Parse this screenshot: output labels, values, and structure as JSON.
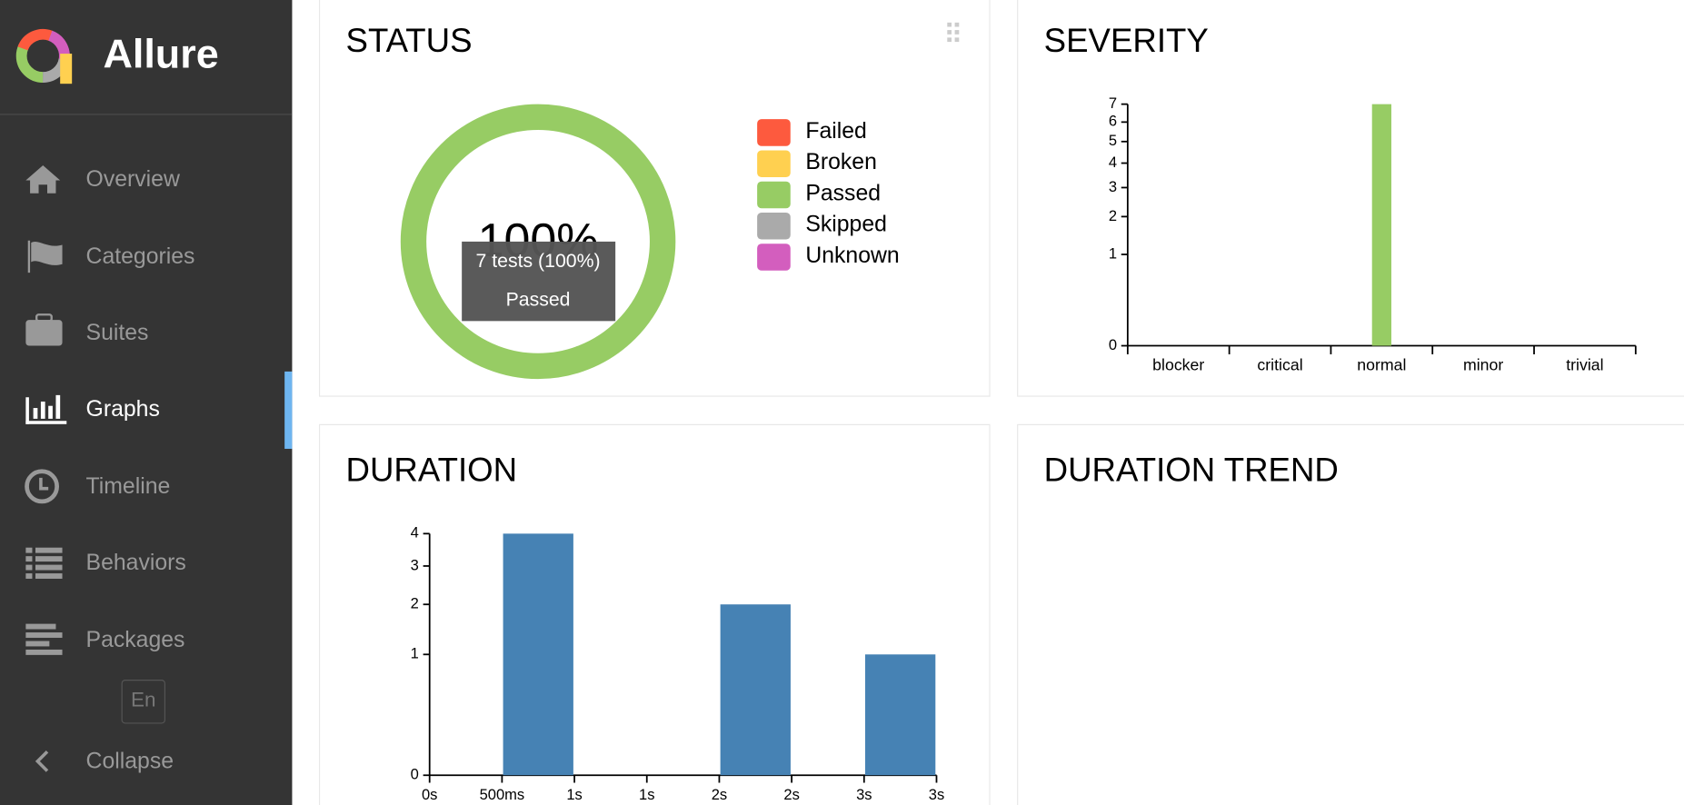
{
  "sidebar": {
    "brand": "Allure",
    "nav": [
      "Overview",
      "Categories",
      "Suites",
      "Graphs",
      "Timeline",
      "Behaviors",
      "Packages"
    ],
    "active": 3,
    "language": "En",
    "collapse": "Collapse"
  },
  "chart_data": [
    {
      "type": "pie",
      "title": "STATUS",
      "categories": [
        "Failed",
        "Broken",
        "Passed",
        "Skipped",
        "Unknown"
      ],
      "values": [
        0,
        0,
        7,
        0,
        0
      ],
      "colors": [
        "#fd5a3e",
        "#ffd050",
        "#97cc64",
        "#aaaaaa",
        "#d35ebe"
      ],
      "center_label": "100%",
      "tooltip": [
        "7 tests (100%)",
        "Passed"
      ]
    },
    {
      "type": "bar",
      "title": "SEVERITY",
      "categories": [
        "blocker",
        "critical",
        "normal",
        "minor",
        "trivial"
      ],
      "values": [
        0,
        0,
        7,
        0,
        0
      ],
      "color": "#97cc64",
      "scale": "sqrt",
      "ylim": [
        0,
        7
      ],
      "yticks": [
        0,
        1,
        2,
        3,
        4,
        5,
        6,
        7
      ]
    },
    {
      "type": "histogram",
      "title": "DURATION",
      "bins": [
        0,
        500,
        1000,
        1500,
        2000,
        2500,
        3000,
        3500
      ],
      "values": [
        0,
        4,
        0,
        0,
        2,
        0,
        1
      ],
      "color": "#4682b4",
      "scale": "sqrt",
      "ylim": [
        0,
        4
      ],
      "yticks": [
        0,
        1,
        2,
        3,
        4
      ],
      "xlim": [
        0,
        3500
      ],
      "xticks": [
        {
          "value": 0,
          "label": "0s"
        },
        {
          "value": 500,
          "label": "500ms"
        },
        {
          "value": 1000,
          "label": "1s"
        },
        {
          "value": 1500,
          "label": "1s"
        },
        {
          "value": 2000,
          "label": "2s"
        },
        {
          "value": 2500,
          "label": "2s"
        },
        {
          "value": 3000,
          "label": "3s"
        },
        {
          "value": 3500,
          "label": "3s"
        }
      ]
    }
  ],
  "empty_widget": {
    "title": "DURATION TREND"
  }
}
